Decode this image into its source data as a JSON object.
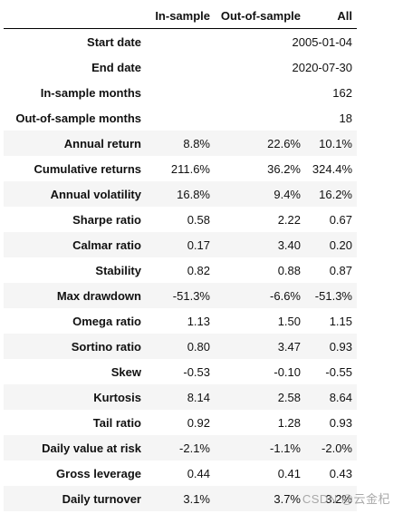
{
  "meta": [
    {
      "label": "Start date",
      "value": "2005-01-04"
    },
    {
      "label": "End date",
      "value": "2020-07-30"
    },
    {
      "label": "In-sample months",
      "value": "162"
    },
    {
      "label": "Out-of-sample months",
      "value": "18"
    }
  ],
  "columns": [
    "In-sample",
    "Out-of-sample",
    "All"
  ],
  "rows": [
    {
      "label": "Annual return",
      "values": [
        "8.8%",
        "22.6%",
        "10.1%"
      ]
    },
    {
      "label": "Cumulative returns",
      "values": [
        "211.6%",
        "36.2%",
        "324.4%"
      ]
    },
    {
      "label": "Annual volatility",
      "values": [
        "16.8%",
        "9.4%",
        "16.2%"
      ]
    },
    {
      "label": "Sharpe ratio",
      "values": [
        "0.58",
        "2.22",
        "0.67"
      ]
    },
    {
      "label": "Calmar ratio",
      "values": [
        "0.17",
        "3.40",
        "0.20"
      ]
    },
    {
      "label": "Stability",
      "values": [
        "0.82",
        "0.88",
        "0.87"
      ]
    },
    {
      "label": "Max drawdown",
      "values": [
        "-51.3%",
        "-6.6%",
        "-51.3%"
      ]
    },
    {
      "label": "Omega ratio",
      "values": [
        "1.13",
        "1.50",
        "1.15"
      ]
    },
    {
      "label": "Sortino ratio",
      "values": [
        "0.80",
        "3.47",
        "0.93"
      ]
    },
    {
      "label": "Skew",
      "values": [
        "-0.53",
        "-0.10",
        "-0.55"
      ]
    },
    {
      "label": "Kurtosis",
      "values": [
        "8.14",
        "2.58",
        "8.64"
      ]
    },
    {
      "label": "Tail ratio",
      "values": [
        "0.92",
        "1.28",
        "0.93"
      ]
    },
    {
      "label": "Daily value at risk",
      "values": [
        "-2.1%",
        "-1.1%",
        "-2.0%"
      ]
    },
    {
      "label": "Gross leverage",
      "values": [
        "0.44",
        "0.41",
        "0.43"
      ]
    },
    {
      "label": "Daily turnover",
      "values": [
        "3.1%",
        "3.7%",
        "3.2%"
      ]
    }
  ],
  "watermark": "CSDN @云金杞"
}
